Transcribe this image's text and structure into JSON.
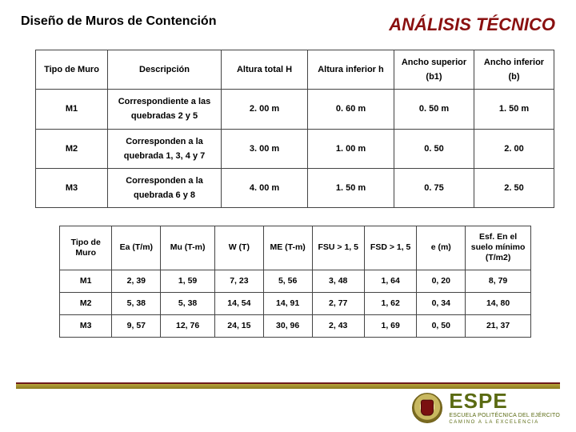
{
  "header": {
    "left_title": "Diseño de Muros de Contención",
    "right_title": "ANÁLISIS TÉCNICO"
  },
  "table1": {
    "columns": [
      "Tipo de Muro",
      "Descripción",
      "Altura total H",
      "Altura inferior h",
      "Ancho superior (b1)",
      "Ancho inferior (b)"
    ],
    "rows": [
      [
        "M1",
        "Correspondiente a las quebradas 2 y 5",
        "2. 00 m",
        "0. 60 m",
        "0. 50 m",
        "1. 50 m"
      ],
      [
        "M2",
        "Corresponden a la quebrada 1, 3, 4 y 7",
        "3. 00 m",
        "1. 00 m",
        "0. 50",
        "2. 00"
      ],
      [
        "M3",
        "Corresponden a la quebrada 6 y 8",
        "4. 00 m",
        "1. 50 m",
        "0. 75",
        "2. 50"
      ]
    ]
  },
  "table2": {
    "columns": [
      "Tipo de Muro",
      "Ea (T/m)",
      "Mu (T-m)",
      "W (T)",
      "ME (T-m)",
      "FSU > 1, 5",
      "FSD > 1, 5",
      "e (m)",
      "Esf. En el suelo mínimo (T/m2)"
    ],
    "rows": [
      [
        "M1",
        "2, 39",
        "1, 59",
        "7, 23",
        "5, 56",
        "3, 48",
        "1, 64",
        "0, 20",
        "8, 79"
      ],
      [
        "M2",
        "5, 38",
        "5, 38",
        "14, 54",
        "14, 91",
        "2, 77",
        "1, 62",
        "0, 34",
        "14, 80"
      ],
      [
        "M3",
        "9, 57",
        "12, 76",
        "24, 15",
        "30, 96",
        "2, 43",
        "1, 69",
        "0, 50",
        "21, 37"
      ]
    ]
  },
  "footer": {
    "brand": "ESPE",
    "sub1": "ESCUELA POLITÉCNICA DEL EJÉRCITO",
    "sub2": "CAMINO A LA EXCELENCIA"
  }
}
